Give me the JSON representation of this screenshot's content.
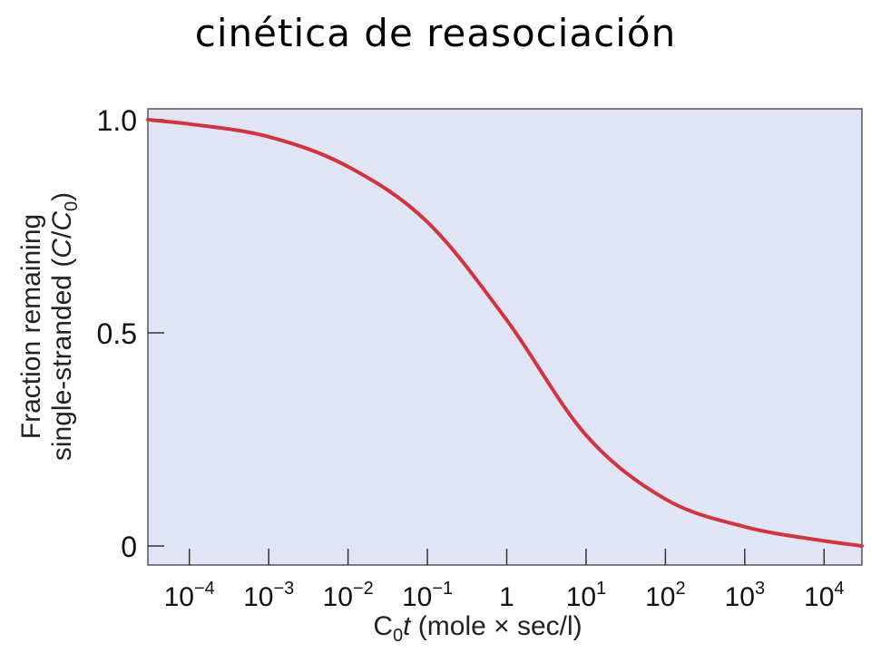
{
  "page": {
    "title": "cinética de reasociación"
  },
  "chart_data": {
    "type": "line",
    "title": "cinética de reasociación",
    "xlabel": {
      "base": "C",
      "sub": "0",
      "var": "t",
      "rest": " (mole × sec/l)"
    },
    "ylabel": {
      "line1": "Fraction remaining",
      "line2_prefix": "single-stranded (",
      "line2_c": "C",
      "line2_slash": "/",
      "line2_c0": "C",
      "line2_sub": "0",
      "line2_suffix": ")"
    },
    "x_scale": "log10",
    "xlim": [
      3e-05,
      30000
    ],
    "ylim": [
      0,
      1
    ],
    "x_ticks": [
      {
        "value": 0.0001,
        "label": "10",
        "exp": "−4"
      },
      {
        "value": 0.001,
        "label": "10",
        "exp": "−3"
      },
      {
        "value": 0.01,
        "label": "10",
        "exp": "−2"
      },
      {
        "value": 0.1,
        "label": "10",
        "exp": "−1"
      },
      {
        "value": 1,
        "label": "1",
        "exp": ""
      },
      {
        "value": 10,
        "label": "10",
        "exp": "1"
      },
      {
        "value": 100,
        "label": "10",
        "exp": "2"
      },
      {
        "value": 1000,
        "label": "10",
        "exp": "3"
      },
      {
        "value": 10000,
        "label": "10",
        "exp": "4"
      }
    ],
    "y_ticks": [
      {
        "value": 1.0,
        "label": "1.0"
      },
      {
        "value": 0.5,
        "label": "0.5"
      },
      {
        "value": 0,
        "label": "0"
      }
    ],
    "grid": false,
    "legend": "none",
    "series": [
      {
        "color": "#d0343e",
        "x": [
          3e-05,
          0.0001,
          0.001,
          0.01,
          0.1,
          1,
          10,
          100,
          1000,
          10000,
          30000
        ],
        "y": [
          1.0,
          0.99,
          0.96,
          0.89,
          0.76,
          0.53,
          0.26,
          0.11,
          0.045,
          0.012,
          0.0
        ]
      }
    ],
    "colors": {
      "plot_bg": "#e1e4f4",
      "axis": "#555555",
      "curve": "#d0343e"
    }
  }
}
